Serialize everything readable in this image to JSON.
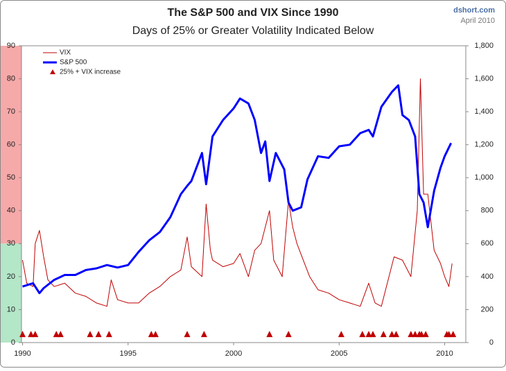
{
  "chart_data": {
    "type": "line",
    "title": "The S&P 500 and VIX Since 1990",
    "subtitle": "Days of 25% or Greater Volatility  Indicated Below",
    "annotations": [
      "dshort.com",
      "April 2010"
    ],
    "xlim": [
      1989.95,
      2011.0
    ],
    "xticks": [
      1990,
      1995,
      2000,
      2005,
      2010
    ],
    "ylim": [
      0,
      90
    ],
    "yticks": [
      0,
      10,
      20,
      30,
      40,
      50,
      60,
      70,
      80,
      90
    ],
    "y2lim": [
      0,
      1800
    ],
    "y2ticks": [
      0,
      200,
      400,
      600,
      800,
      {
        "value": 1000,
        "label": "1,000"
      },
      {
        "value": 1200,
        "label": "1,200"
      },
      {
        "value": 1400,
        "label": "1,400"
      },
      {
        "value": 1600,
        "label": "1,600"
      },
      {
        "value": 1800,
        "label": "1,800"
      }
    ],
    "bands": [
      {
        "from": 30,
        "to": 90,
        "color": "#f6a9a9"
      },
      {
        "from": 0,
        "to": 30,
        "color": "#b4e6c8"
      }
    ],
    "series": [
      {
        "name": "VIX",
        "color": "#c00000",
        "width": 1,
        "x": [
          1990.0,
          1990.2,
          1990.5,
          1990.6,
          1990.8,
          1991.0,
          1991.2,
          1991.5,
          1992.0,
          1992.5,
          1993.0,
          1993.5,
          1994.0,
          1994.2,
          1994.5,
          1995.0,
          1995.5,
          1996.0,
          1996.5,
          1997.0,
          1997.5,
          1997.8,
          1998.0,
          1998.5,
          1998.7,
          1998.9,
          1999.0,
          1999.5,
          2000.0,
          2000.3,
          2000.7,
          2001.0,
          2001.3,
          2001.7,
          2001.9,
          2002.3,
          2002.6,
          2002.8,
          2003.0,
          2003.3,
          2003.6,
          2004.0,
          2004.5,
          2005.0,
          2005.5,
          2006.0,
          2006.4,
          2006.7,
          2007.0,
          2007.2,
          2007.6,
          2008.0,
          2008.4,
          2008.7,
          2008.85,
          2009.0,
          2009.2,
          2009.5,
          2009.8,
          2010.0,
          2010.2,
          2010.35
        ],
        "values": [
          25,
          18,
          17,
          30,
          34,
          26,
          19,
          17,
          18,
          15,
          14,
          12,
          11,
          19,
          13,
          12,
          12,
          15,
          17,
          20,
          22,
          32,
          23,
          20,
          42,
          28,
          25,
          23,
          24,
          27,
          20,
          28,
          30,
          40,
          25,
          20,
          43,
          35,
          30,
          25,
          20,
          16,
          15,
          13,
          12,
          11,
          18,
          12,
          11,
          16,
          26,
          25,
          20,
          40,
          80,
          45,
          45,
          28,
          24,
          20,
          17,
          24
        ]
      },
      {
        "name": "S&P 500",
        "color": "#0000ff",
        "width": 3,
        "axis": "y2",
        "x": [
          1990.0,
          1990.5,
          1990.8,
          1991.0,
          1991.5,
          1992.0,
          1992.5,
          1993.0,
          1993.5,
          1994.0,
          1994.5,
          1995.0,
          1995.5,
          1996.0,
          1996.5,
          1997.0,
          1997.5,
          1997.8,
          1998.0,
          1998.5,
          1998.7,
          1999.0,
          1999.5,
          2000.0,
          2000.3,
          2000.7,
          2001.0,
          2001.3,
          2001.5,
          2001.7,
          2002.0,
          2002.4,
          2002.6,
          2002.8,
          2003.2,
          2003.5,
          2004.0,
          2004.5,
          2005.0,
          2005.5,
          2006.0,
          2006.4,
          2006.6,
          2007.0,
          2007.5,
          2007.8,
          2008.0,
          2008.3,
          2008.6,
          2008.8,
          2009.0,
          2009.2,
          2009.5,
          2009.8,
          2010.0,
          2010.3
        ],
        "values": [
          340,
          360,
          300,
          330,
          380,
          410,
          410,
          440,
          450,
          470,
          455,
          470,
          550,
          620,
          670,
          760,
          900,
          950,
          980,
          1150,
          960,
          1250,
          1350,
          1420,
          1480,
          1450,
          1350,
          1150,
          1220,
          980,
          1150,
          1050,
          850,
          800,
          820,
          990,
          1130,
          1120,
          1190,
          1200,
          1270,
          1290,
          1250,
          1430,
          1520,
          1560,
          1380,
          1350,
          1250,
          900,
          850,
          700,
          920,
          1060,
          1130,
          1210
        ]
      },
      {
        "name": "25% + VIX increase",
        "color": "#c00000",
        "mark": "triangle",
        "x": [
          1990.0,
          1990.4,
          1990.6,
          1991.6,
          1991.8,
          1993.2,
          1993.6,
          1994.1,
          1996.1,
          1996.3,
          1997.8,
          1998.6,
          2001.7,
          2002.6,
          2005.1,
          2006.1,
          2006.4,
          2006.6,
          2007.1,
          2007.5,
          2007.7,
          2008.4,
          2008.6,
          2008.8,
          2008.9,
          2009.1,
          2010.1,
          2010.2,
          2010.4
        ],
        "values": [
          2.5,
          2.5,
          2.5,
          2.5,
          2.5,
          2.5,
          2.5,
          2.5,
          2.5,
          2.5,
          2.5,
          2.5,
          2.5,
          2.5,
          2.5,
          2.5,
          2.5,
          2.5,
          2.5,
          2.5,
          2.5,
          2.5,
          2.5,
          2.5,
          2.5,
          2.5,
          2.5,
          2.5,
          2.5
        ]
      }
    ]
  }
}
